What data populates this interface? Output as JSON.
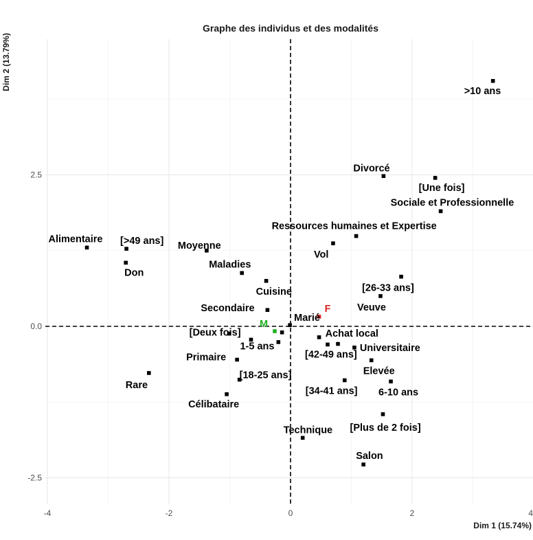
{
  "chart_data": {
    "type": "scatter",
    "title": "Graphe des individus et des modalités",
    "xlabel": "Dim 1 (15.74%)",
    "ylabel": "Dim 2 (13.79%)",
    "xlim": [
      -4.1,
      4.0
    ],
    "ylim": [
      -2.95,
      4.9
    ],
    "x_ticks": [
      -4,
      -2,
      0,
      2,
      4
    ],
    "y_ticks": [
      -2.5,
      0.0,
      2.5
    ],
    "x_tick_labels": [
      "-4",
      "-2",
      "0",
      "2",
      "4"
    ],
    "y_tick_labels": [
      "-2.5",
      "0.0",
      "2.5"
    ],
    "grid": true,
    "reference_lines": {
      "x": 0,
      "y": 0,
      "style": "dashed"
    },
    "colors": {
      "modalite": "#000000",
      "male": "#22b022",
      "female": "#d62728"
    },
    "points": [
      {
        "label": ">10 ans",
        "x": 3.33,
        "y": 4.05,
        "group": "modalite"
      },
      {
        "label": "Divorcé",
        "x": 1.53,
        "y": 2.48,
        "group": "modalite"
      },
      {
        "label": "[Une fois]",
        "x": 2.38,
        "y": 2.45,
        "group": "modalite"
      },
      {
        "label": "Sociale et Professionnelle",
        "x": 2.47,
        "y": 1.9,
        "group": "modalite"
      },
      {
        "label": "Ressources humaines et Expertise",
        "x": 1.08,
        "y": 1.49,
        "group": "modalite"
      },
      {
        "label": "Vol",
        "x": 0.7,
        "y": 1.37,
        "group": "modalite"
      },
      {
        "label": "Alimentaire",
        "x": -3.35,
        "y": 1.3,
        "group": "modalite"
      },
      {
        "label": "[>49 ans]",
        "x": -2.7,
        "y": 1.28,
        "group": "modalite"
      },
      {
        "label": "Moyenne",
        "x": -1.38,
        "y": 1.25,
        "group": "modalite"
      },
      {
        "label": "Don",
        "x": -2.71,
        "y": 1.05,
        "group": "modalite"
      },
      {
        "label": "Maladies",
        "x": -0.8,
        "y": 0.88,
        "group": "modalite"
      },
      {
        "label": "Cuisine",
        "x": -0.4,
        "y": 0.75,
        "group": "modalite"
      },
      {
        "label": "[26-33 ans]",
        "x": 1.82,
        "y": 0.82,
        "group": "modalite"
      },
      {
        "label": "Veuve",
        "x": 1.48,
        "y": 0.5,
        "group": "modalite"
      },
      {
        "label": "Secondaire",
        "x": -0.38,
        "y": 0.27,
        "group": "modalite"
      },
      {
        "label": "F",
        "x": 0.47,
        "y": 0.16,
        "group": "female"
      },
      {
        "label": "Marié",
        "x": -0.01,
        "y": 0.02,
        "group": "modalite"
      },
      {
        "label": "M",
        "x": -0.26,
        "y": -0.08,
        "group": "male"
      },
      {
        "label": "[Deux fois]",
        "x": -1.01,
        "y": -0.12,
        "group": "modalite"
      },
      {
        "label": "",
        "x": -0.14,
        "y": -0.1,
        "group": "modalite"
      },
      {
        "label": "1-5 ans",
        "x": -0.65,
        "y": -0.22,
        "group": "modalite"
      },
      {
        "label": "",
        "x": -0.2,
        "y": -0.26,
        "group": "modalite"
      },
      {
        "label": "Achat local",
        "x": 0.47,
        "y": -0.18,
        "group": "modalite"
      },
      {
        "label": "[42-49 ans]",
        "x": 0.61,
        "y": -0.3,
        "group": "modalite"
      },
      {
        "label": "",
        "x": 0.78,
        "y": -0.29,
        "group": "modalite"
      },
      {
        "label": "Universitaire",
        "x": 1.05,
        "y": -0.35,
        "group": "modalite"
      },
      {
        "label": "Elevée",
        "x": 1.33,
        "y": -0.56,
        "group": "modalite"
      },
      {
        "label": "Primaire",
        "x": -0.88,
        "y": -0.55,
        "group": "modalite"
      },
      {
        "label": "[18-25 ans]",
        "x": -0.84,
        "y": -0.88,
        "group": "modalite"
      },
      {
        "label": "[34-41 ans]",
        "x": 0.89,
        "y": -0.89,
        "group": "modalite"
      },
      {
        "label": "6-10 ans",
        "x": 1.65,
        "y": -0.91,
        "group": "modalite"
      },
      {
        "label": "Rare",
        "x": -2.33,
        "y": -0.77,
        "group": "modalite"
      },
      {
        "label": "Célibataire",
        "x": -1.05,
        "y": -1.12,
        "group": "modalite"
      },
      {
        "label": "[Plus de 2 fois]",
        "x": 1.52,
        "y": -1.45,
        "group": "modalite"
      },
      {
        "label": "Technique",
        "x": 0.2,
        "y": -1.84,
        "group": "modalite"
      },
      {
        "label": "Salon",
        "x": 1.2,
        "y": -2.28,
        "group": "modalite"
      }
    ]
  }
}
